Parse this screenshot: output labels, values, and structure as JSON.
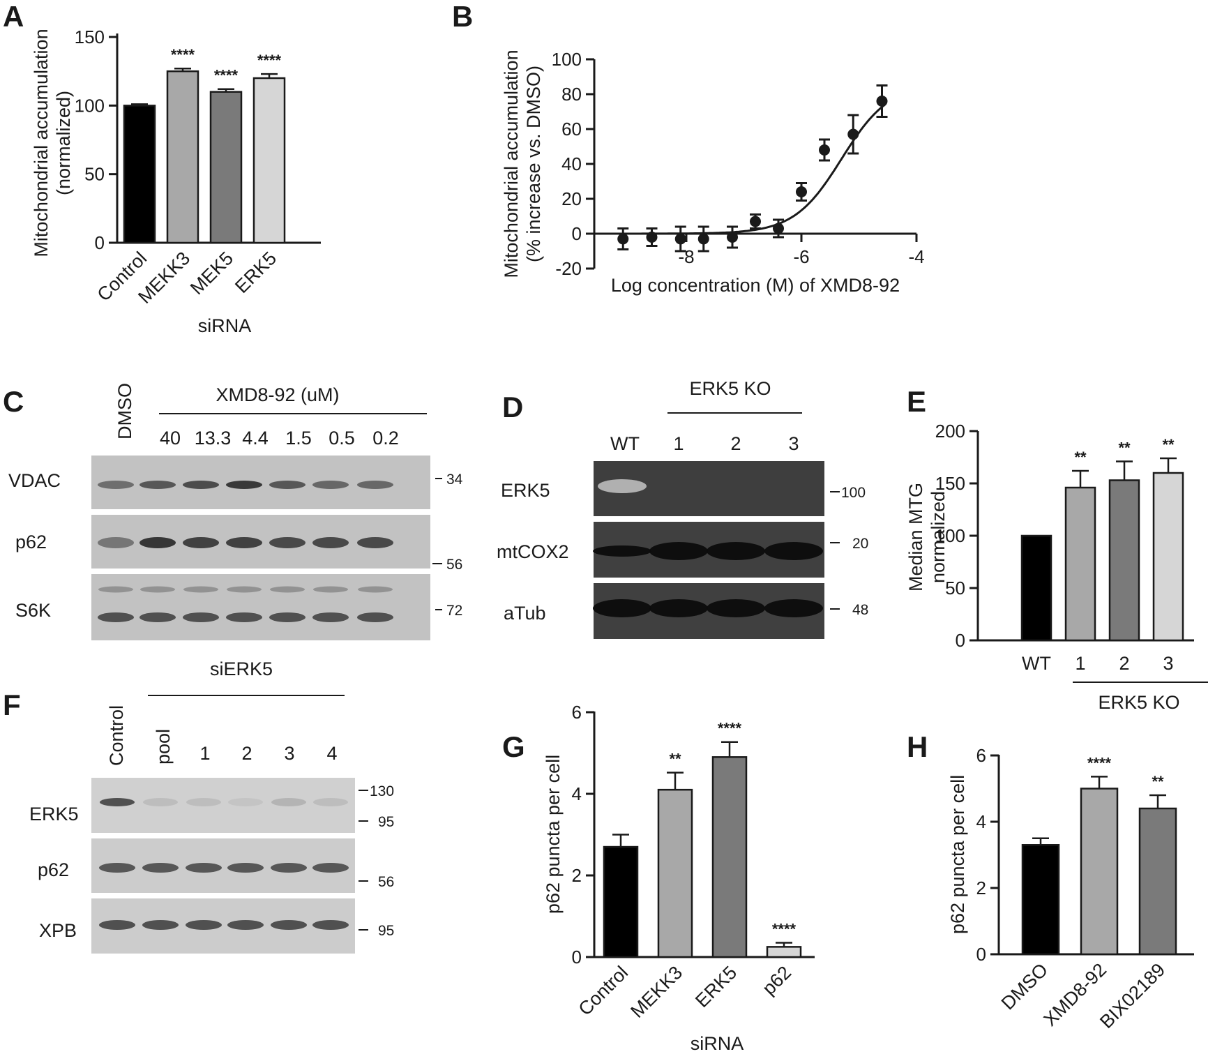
{
  "panels": {
    "A": "A",
    "B": "B",
    "C": "C",
    "D": "D",
    "E": "E",
    "F": "F",
    "G": "G",
    "H": "H"
  },
  "chart_data": [
    {
      "id": "A",
      "type": "bar",
      "categories": [
        "Control",
        "MEKK3",
        "MEK5",
        "ERK5"
      ],
      "values": [
        100,
        125,
        110,
        120
      ],
      "errors": [
        1,
        2,
        2,
        3
      ],
      "significance": [
        "",
        "****",
        "****",
        "****"
      ],
      "colors": [
        "#000000",
        "#a8a8a8",
        "#7a7a7a",
        "#d6d6d6"
      ],
      "ylabel": [
        "Mitochondrial accumulation",
        "(normalized)"
      ],
      "xlabel": "siRNA",
      "ylim": [
        0,
        150
      ],
      "yticks": [
        0,
        50,
        100,
        150
      ]
    },
    {
      "id": "B",
      "type": "scatter",
      "x": [
        -9.1,
        -8.6,
        -8.1,
        -7.7,
        -7.2,
        -6.8,
        -6.4,
        -6.0,
        -5.6,
        -5.1,
        -4.6
      ],
      "y": [
        -3,
        -2,
        -3,
        -3,
        -2,
        7,
        3,
        24,
        48,
        57,
        76
      ],
      "errors": [
        6,
        5,
        7,
        7,
        6,
        4,
        5,
        5,
        6,
        11,
        9
      ],
      "fit": {
        "bottom": 0,
        "top": 86,
        "log_ec50": -5.3,
        "hill": 1.05
      },
      "ylabel": [
        "Mitochondrial accumulation",
        "(% increase vs. DMSO)"
      ],
      "xlabel": "Log concentration (M) of XMD8-92",
      "xlim": [
        -9.6,
        -4
      ],
      "xticks": [
        -8,
        -6,
        -4
      ],
      "ylim": [
        -20,
        100
      ],
      "yticks": [
        -20,
        0,
        20,
        40,
        60,
        80,
        100
      ]
    },
    {
      "id": "E",
      "type": "bar",
      "categories": [
        "WT",
        "1",
        "2",
        "3"
      ],
      "values": [
        100,
        146,
        153,
        160
      ],
      "errors": [
        0,
        16,
        18,
        14
      ],
      "significance": [
        "",
        "**",
        "**",
        "**"
      ],
      "colors": [
        "#000000",
        "#a8a8a8",
        "#7a7a7a",
        "#d6d6d6"
      ],
      "ylabel": [
        "Median MTG",
        "normalized"
      ],
      "group_label": "ERK5 KO",
      "ylim": [
        0,
        200
      ],
      "yticks": [
        0,
        50,
        100,
        150,
        200
      ]
    },
    {
      "id": "G",
      "type": "bar",
      "categories": [
        "Control",
        "MEKK3",
        "ERK5",
        "p62"
      ],
      "values": [
        2.7,
        4.1,
        4.9,
        0.25
      ],
      "errors": [
        0.3,
        0.42,
        0.37,
        0.1
      ],
      "significance": [
        "",
        "**",
        "****",
        "****"
      ],
      "colors": [
        "#000000",
        "#a8a8a8",
        "#7a7a7a",
        "#d6d6d6"
      ],
      "ylabel": "p62 puncta per cell",
      "xlabel": "siRNA",
      "ylim": [
        0,
        6
      ],
      "yticks": [
        0,
        2,
        4,
        6
      ]
    },
    {
      "id": "H",
      "type": "bar",
      "categories": [
        "DMSO",
        "XMD8-92",
        "BIX02189"
      ],
      "values": [
        3.3,
        5.0,
        4.4
      ],
      "errors": [
        0.2,
        0.36,
        0.4
      ],
      "significance": [
        "",
        "****",
        "**"
      ],
      "colors": [
        "#000000",
        "#a8a8a8",
        "#7a7a7a"
      ],
      "ylabel": "p62 puncta per cell",
      "ylim": [
        0,
        6
      ],
      "yticks": [
        0,
        2,
        4,
        6
      ]
    }
  ],
  "blots": {
    "C": {
      "control_lane": "DMSO",
      "treatment": "XMD8-92 (uM)",
      "lanes": [
        "40",
        "13.3",
        "4.4",
        "1.5",
        "0.5",
        "0.2"
      ],
      "rows": [
        "VDAC",
        "p62",
        "S6K"
      ],
      "markers": [
        "34",
        "56",
        "72"
      ]
    },
    "D": {
      "group": "ERK5 KO",
      "lanes": [
        "WT",
        "1",
        "2",
        "3"
      ],
      "rows": [
        "ERK5",
        "mtCOX2",
        "aTub"
      ],
      "markers": [
        "100",
        "20",
        "48"
      ]
    },
    "F": {
      "control_lane": "Control",
      "group": "siERK5",
      "lanes": [
        "pool",
        "1",
        "2",
        "3",
        "4"
      ],
      "rows": [
        "ERK5",
        "p62",
        "XPB"
      ],
      "markers": [
        "130",
        "95",
        "56",
        "95"
      ]
    }
  }
}
